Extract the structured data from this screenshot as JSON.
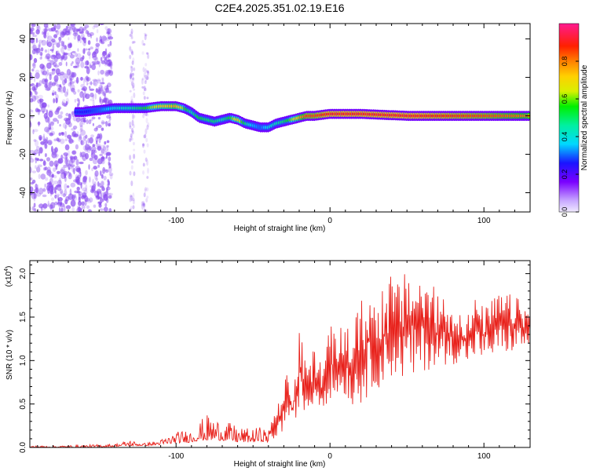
{
  "title": "C2E4.2025.351.02.19.E16",
  "colors": {
    "snr_line": "#e8211b",
    "axis": "#000000",
    "background": "#ffffff",
    "noise": "#8a4cf0"
  },
  "chart_data": [
    {
      "type": "heatmap",
      "name": "spectrogram",
      "xlabel": "Height of straight line (km)",
      "ylabel": "Frequency (Hz)",
      "xlim": [
        -195,
        130
      ],
      "ylim": [
        -50,
        48
      ],
      "x_ticks": [
        -100,
        0,
        100
      ],
      "x_tick_labels": [
        "-100",
        "0",
        "100"
      ],
      "y_ticks": [
        -40,
        -20,
        0,
        20,
        40
      ],
      "y_tick_labels": [
        "-40",
        "-20",
        "0",
        "20",
        "40"
      ],
      "signal_track": {
        "height_km": [
          -160,
          -150,
          -140,
          -130,
          -120,
          -110,
          -100,
          -95,
          -90,
          -85,
          -80,
          -75,
          -70,
          -65,
          -60,
          -55,
          -50,
          -45,
          -40,
          -35,
          -30,
          -25,
          -20,
          -15,
          -10,
          0,
          20,
          50,
          100,
          130
        ],
        "frequency_hz": [
          2,
          3,
          4,
          4,
          4,
          5,
          5,
          4,
          2,
          -1,
          -2,
          -3,
          -2,
          -1,
          -2,
          -4,
          -5,
          -6,
          -6,
          -4,
          -3,
          -2,
          -1,
          0,
          0,
          1,
          1,
          0,
          0,
          0
        ],
        "amplitude": [
          0.25,
          0.3,
          0.4,
          0.45,
          0.55,
          0.7,
          0.75,
          0.6,
          0.45,
          0.55,
          0.5,
          0.5,
          0.45,
          0.55,
          0.7,
          0.5,
          0.35,
          0.3,
          0.4,
          0.45,
          0.5,
          0.6,
          0.75,
          0.85,
          0.85,
          0.9,
          0.9,
          0.9,
          0.85,
          0.8
        ]
      },
      "colorbar": {
        "label": "Normalized spectral amplitude",
        "range": [
          0,
          1
        ],
        "ticks": [
          0.0,
          0.2,
          0.4,
          0.6,
          0.8
        ],
        "tick_labels": [
          "0.0",
          "0.2",
          "0.4",
          "0.6",
          "0.8"
        ]
      }
    },
    {
      "type": "line",
      "name": "snr",
      "xlabel": "Height of straight line (km)",
      "ylabel": "SNR (10 * v/v)",
      "scale_label": "(x10",
      "scale_exponent": "4",
      "xlim": [
        -195,
        130
      ],
      "ylim": [
        0,
        2.15
      ],
      "x_ticks": [
        -100,
        0,
        100
      ],
      "x_tick_labels": [
        "-100",
        "0",
        "100"
      ],
      "y_ticks": [
        0.0,
        0.5,
        1.0,
        1.5,
        2.0
      ],
      "y_tick_labels": [
        "0.0",
        "0.5",
        "1.0",
        "1.5",
        "2.0"
      ],
      "series": [
        {
          "name": "SNR",
          "x": [
            -195,
            -180,
            -160,
            -140,
            -130,
            -125,
            -120,
            -110,
            -100,
            -90,
            -85,
            -80,
            -75,
            -70,
            -65,
            -60,
            -55,
            -50,
            -45,
            -40,
            -35,
            -32,
            -30,
            -28,
            -25,
            -22,
            -20,
            -15,
            -10,
            -5,
            0,
            5,
            10,
            15,
            20,
            25,
            30,
            35,
            40,
            45,
            50,
            55,
            60,
            65,
            70,
            75,
            80,
            85,
            90,
            95,
            100,
            110,
            120,
            130
          ],
          "envelope_max": [
            0.02,
            0.02,
            0.03,
            0.04,
            0.09,
            0.06,
            0.05,
            0.09,
            0.18,
            0.22,
            0.3,
            0.38,
            0.35,
            0.32,
            0.28,
            0.25,
            0.22,
            0.22,
            0.24,
            0.2,
            0.5,
            0.55,
            0.7,
            1.05,
            0.6,
            0.9,
            1.35,
            1.0,
            1.15,
            0.95,
            1.4,
            1.35,
            1.45,
            1.4,
            1.7,
            1.85,
            1.7,
            1.95,
            2.0,
            1.9,
            2.05,
            2.05,
            2.0,
            1.9,
            1.8,
            1.75,
            1.65,
            1.6,
            1.55,
            1.75,
            1.6,
            1.8,
            1.75,
            1.6
          ],
          "envelope_min": [
            0.0,
            0.0,
            0.0,
            0.01,
            0.02,
            0.02,
            0.02,
            0.03,
            0.05,
            0.06,
            0.08,
            0.08,
            0.08,
            0.08,
            0.07,
            0.06,
            0.06,
            0.06,
            0.07,
            0.06,
            0.1,
            0.15,
            0.2,
            0.3,
            0.25,
            0.35,
            0.45,
            0.35,
            0.5,
            0.45,
            0.55,
            0.55,
            0.6,
            0.45,
            0.5,
            0.6,
            0.7,
            0.65,
            0.8,
            0.75,
            0.8,
            0.75,
            0.85,
            0.9,
            0.9,
            0.95,
            0.95,
            1.0,
            0.95,
            1.05,
            1.0,
            1.05,
            1.1,
            1.15
          ]
        }
      ]
    }
  ]
}
